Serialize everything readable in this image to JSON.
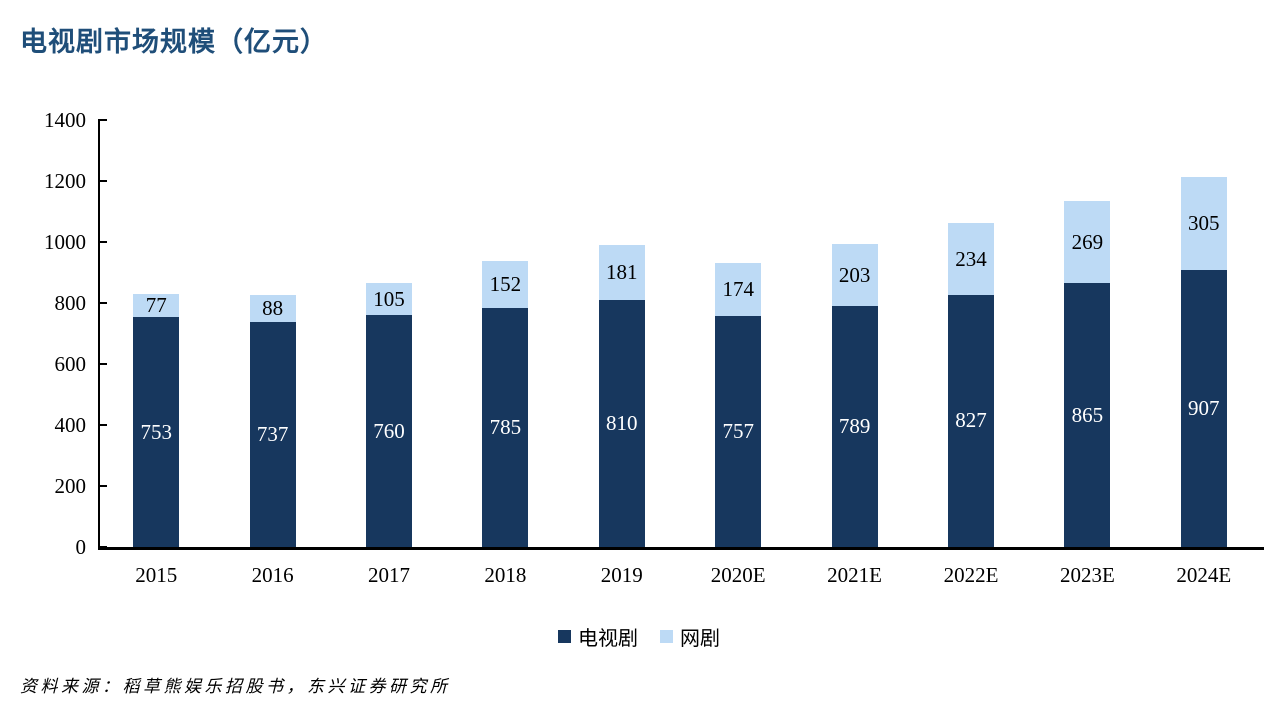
{
  "title": "电视剧市场规模（亿元）",
  "source_note": "资料来源：稻草熊娱乐招股书，东兴证券研究所",
  "colors": {
    "title": "#1F4E79",
    "tv": "#17375E",
    "web": "#BDDAF5",
    "axis": "#000000",
    "label_on_dark": "#FFFFFF",
    "label_on_light": "#000000"
  },
  "chart_data": {
    "type": "bar",
    "stacked": true,
    "title": "电视剧市场规模（亿元）",
    "categories": [
      "2015",
      "2016",
      "2017",
      "2018",
      "2019",
      "2020E",
      "2021E",
      "2022E",
      "2023E",
      "2024E"
    ],
    "series": [
      {
        "name": "电视剧",
        "color_key": "tv",
        "values": [
          753,
          737,
          760,
          785,
          810,
          757,
          789,
          827,
          865,
          907
        ]
      },
      {
        "name": "网剧",
        "color_key": "web",
        "values": [
          77,
          88,
          105,
          152,
          181,
          174,
          203,
          234,
          269,
          305
        ]
      }
    ],
    "ylim": [
      0,
      1400
    ],
    "ytick_step": 200,
    "yticks": [
      "0",
      "200",
      "400",
      "600",
      "800",
      "1000",
      "1200",
      "1400"
    ],
    "grid": false,
    "legend_position": "bottom",
    "xlabel": "",
    "ylabel": ""
  }
}
